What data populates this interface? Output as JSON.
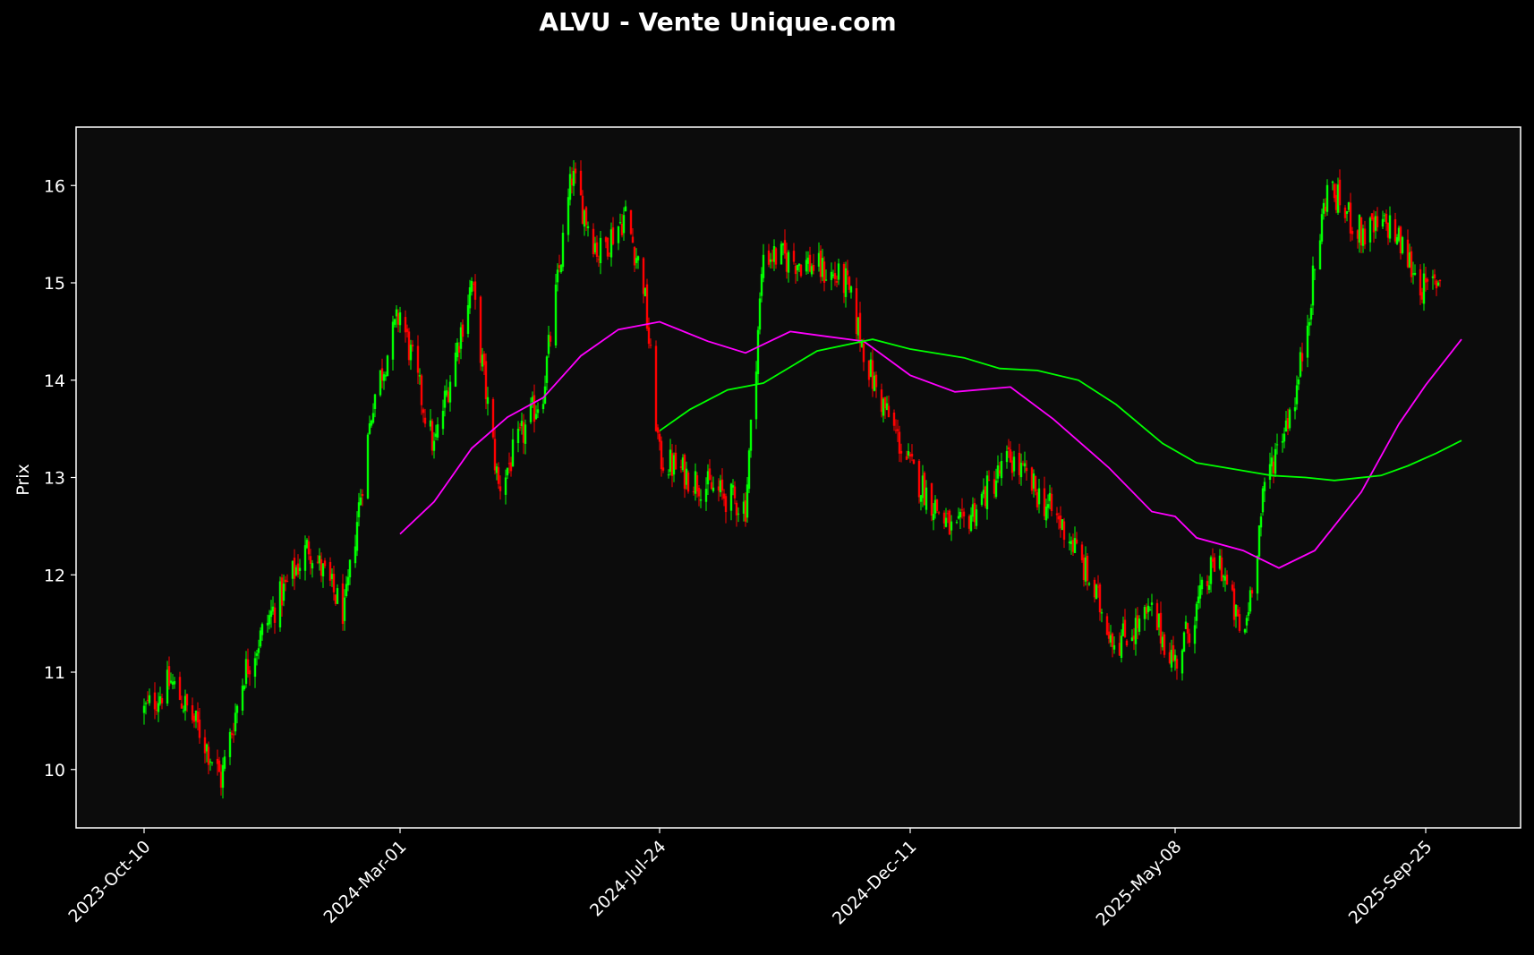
{
  "chart_data": {
    "type": "candlestick",
    "title": "ALVU - Vente Unique.com",
    "xlabel": "",
    "ylabel": "Prix",
    "ylim": [
      9.4,
      16.6
    ],
    "y_ticks": [
      10,
      11,
      12,
      13,
      14,
      15,
      16
    ],
    "x_tick_labels": [
      "2023-Oct-10",
      "2024-Mar-01",
      "2024-Jul-24",
      "2024-Dec-11",
      "2025-May-08",
      "2025-Sep-25"
    ],
    "grid": false,
    "colors": {
      "background": "#000000",
      "plot_background": "#0c0c0c",
      "up": "#00ff00",
      "down": "#ff0000",
      "ma_short": "#ff00ff",
      "ma_long": "#00ff00",
      "text": "#ffffff"
    },
    "price_path": [
      [
        "2023-Oct-10",
        10.6
      ],
      [
        "2023-Oct-25",
        10.9
      ],
      [
        "2023-Nov-10",
        10.4
      ],
      [
        "2023-Nov-22",
        9.9
      ],
      [
        "2023-Dec-05",
        11.0
      ],
      [
        "2023-Dec-20",
        11.6
      ],
      [
        "2024-Jan-10",
        12.3
      ],
      [
        "2024-Jan-30",
        11.6
      ],
      [
        "2024-Feb-15",
        13.8
      ],
      [
        "2024-Mar-01",
        14.7
      ],
      [
        "2024-Mar-20",
        13.3
      ],
      [
        "2024-Apr-10",
        15.0
      ],
      [
        "2024-Apr-25",
        12.9
      ],
      [
        "2024-May-20",
        13.9
      ],
      [
        "2024-Jun-05",
        16.1
      ],
      [
        "2024-Jun-20",
        15.3
      ],
      [
        "2024-Jul-05",
        15.7
      ],
      [
        "2024-Jul-15",
        15.0
      ],
      [
        "2024-Jul-24",
        13.2
      ],
      [
        "2024-Aug-20",
        12.9
      ],
      [
        "2024-Sep-10",
        12.7
      ],
      [
        "2024-Sep-20",
        15.3
      ],
      [
        "2024-Oct-15",
        15.2
      ],
      [
        "2024-Nov-05",
        15.0
      ],
      [
        "2024-Nov-20",
        14.0
      ],
      [
        "2024-Dec-11",
        13.1
      ],
      [
        "2025-Jan-05",
        12.4
      ],
      [
        "2025-Feb-05",
        13.2
      ],
      [
        "2025-Mar-10",
        12.4
      ],
      [
        "2025-Apr-05",
        11.3
      ],
      [
        "2025-Apr-25",
        11.6
      ],
      [
        "2025-May-08",
        11.1
      ],
      [
        "2025-Jun-01",
        12.2
      ],
      [
        "2025-Jun-15",
        11.3
      ],
      [
        "2025-Jun-28",
        13.0
      ],
      [
        "2025-Jul-15",
        13.9
      ],
      [
        "2025-Aug-01",
        16.0
      ],
      [
        "2025-Aug-20",
        15.5
      ],
      [
        "2025-Sep-05",
        15.6
      ],
      [
        "2025-Sep-25",
        14.9
      ],
      [
        "2025-Oct-05",
        15.1
      ]
    ],
    "series": [
      {
        "name": "",
        "type": "moving-average",
        "color": "#ff00ff",
        "points": [
          [
            "2024-Mar-01",
            12.42
          ],
          [
            "2024-Mar-20",
            12.75
          ],
          [
            "2024-Apr-10",
            13.3
          ],
          [
            "2024-Apr-30",
            13.62
          ],
          [
            "2024-May-20",
            13.82
          ],
          [
            "2024-Jun-10",
            14.25
          ],
          [
            "2024-Jul-01",
            14.52
          ],
          [
            "2024-Jul-24",
            14.6
          ],
          [
            "2024-Aug-20",
            14.4
          ],
          [
            "2024-Sep-10",
            14.28
          ],
          [
            "2024-Oct-05",
            14.5
          ],
          [
            "2024-Oct-25",
            14.45
          ],
          [
            "2024-Nov-15",
            14.4
          ],
          [
            "2024-Dec-11",
            14.05
          ],
          [
            "2025-Jan-05",
            13.88
          ],
          [
            "2025-Feb-05",
            13.93
          ],
          [
            "2025-Mar-01",
            13.6
          ],
          [
            "2025-Apr-01",
            13.1
          ],
          [
            "2025-Apr-25",
            12.65
          ],
          [
            "2025-May-08",
            12.6
          ],
          [
            "2025-May-20",
            12.38
          ],
          [
            "2025-Jun-15",
            12.25
          ],
          [
            "2025-Jul-05",
            12.07
          ],
          [
            "2025-Jul-25",
            12.25
          ],
          [
            "2025-Aug-20",
            12.85
          ],
          [
            "2025-Sep-10",
            13.55
          ],
          [
            "2025-Sep-25",
            13.95
          ],
          [
            "2025-Oct-15",
            14.42
          ]
        ]
      },
      {
        "name": "",
        "type": "moving-average",
        "color": "#00ff00",
        "points": [
          [
            "2024-Jul-24",
            13.48
          ],
          [
            "2024-Aug-10",
            13.7
          ],
          [
            "2024-Aug-31",
            13.9
          ],
          [
            "2024-Sep-20",
            13.97
          ],
          [
            "2024-Oct-20",
            14.3
          ],
          [
            "2024-Nov-20",
            14.42
          ],
          [
            "2024-Dec-11",
            14.32
          ],
          [
            "2025-Jan-10",
            14.23
          ],
          [
            "2025-Jan-30",
            14.12
          ],
          [
            "2025-Feb-20",
            14.1
          ],
          [
            "2025-Mar-15",
            14.0
          ],
          [
            "2025-Apr-05",
            13.75
          ],
          [
            "2025-May-01",
            13.35
          ],
          [
            "2025-May-20",
            13.15
          ],
          [
            "2025-Jun-15",
            13.07
          ],
          [
            "2025-Jul-01",
            13.02
          ],
          [
            "2025-Jul-20",
            13.0
          ],
          [
            "2025-Aug-05",
            12.97
          ],
          [
            "2025-Aug-31",
            13.02
          ],
          [
            "2025-Sep-15",
            13.12
          ],
          [
            "2025-Oct-01",
            13.25
          ],
          [
            "2025-Oct-15",
            13.38
          ]
        ]
      }
    ]
  }
}
